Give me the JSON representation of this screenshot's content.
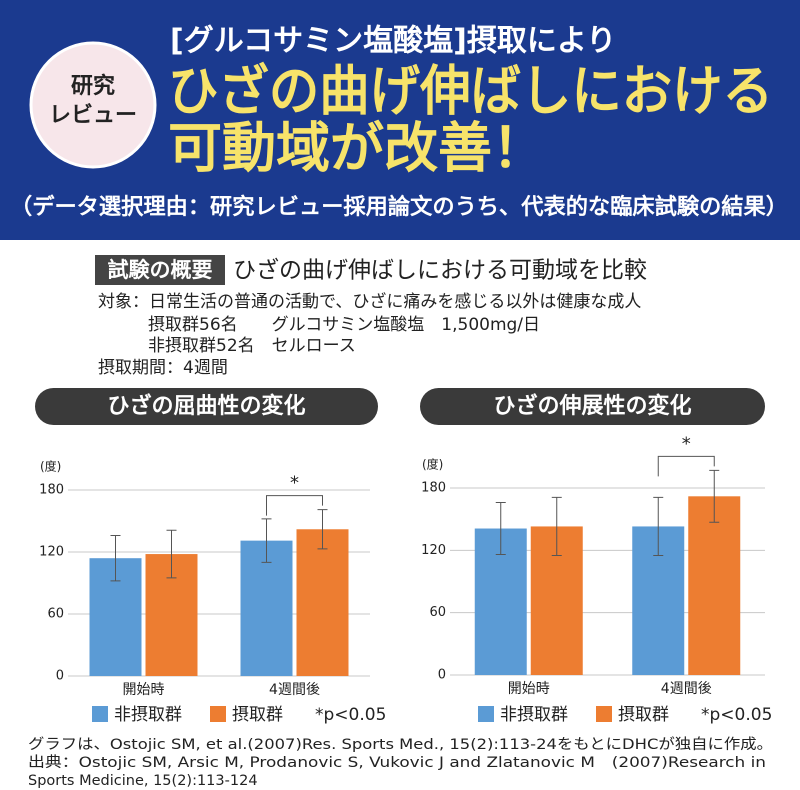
{
  "header": {
    "badge": [
      "研究",
      "レビュー"
    ],
    "title_lines": [
      "[グルコサミン塩酸塩]摂取により",
      "ひざの曲げ伸ばしにおける",
      "可動域が改善！"
    ],
    "note": "（データ選択理由：研究レビュー採用論文のうち、代表的な臨床試験の結果）"
  },
  "overview": {
    "label": "試験の概要",
    "heading": "ひざの曲げ伸ばしにおける可動域を比較",
    "lines": [
      "対象：日常生活の普通の活動で、ひざに痛みを感じる以外は健康な成人",
      "摂取群56名　　グルコサミン塩酸塩　1,500mg/日",
      "非摂取群52名　セルロース",
      "摂取期間：4週間"
    ]
  },
  "chart_data": [
    {
      "type": "bar",
      "title": "ひざの屈曲性の変化",
      "y_label": "(度)",
      "categories": [
        "開始時",
        "4週間後"
      ],
      "series": [
        {
          "name": "非摂取群",
          "color": "#5b9bd5",
          "values": [
            114,
            131
          ],
          "errors": [
            22,
            21
          ]
        },
        {
          "name": "摂取群",
          "color": "#ed7d31",
          "values": [
            118,
            142
          ],
          "errors": [
            23,
            19
          ]
        }
      ],
      "ylim": [
        0,
        180
      ],
      "yticks": [
        0,
        60,
        120,
        180
      ],
      "grid": true,
      "significance": "*",
      "note": "*p<0.05"
    },
    {
      "type": "bar",
      "title": "ひざの伸展性の変化",
      "y_label": "(度)",
      "categories": [
        "開始時",
        "4週間後"
      ],
      "series": [
        {
          "name": "非摂取群",
          "color": "#5b9bd5",
          "values": [
            141,
            143
          ],
          "errors": [
            25,
            28
          ]
        },
        {
          "name": "摂取群",
          "color": "#ed7d31",
          "values": [
            143,
            172
          ],
          "errors": [
            28,
            25
          ]
        }
      ],
      "ylim": [
        0,
        180
      ],
      "yticks": [
        0,
        60,
        120,
        180
      ],
      "grid": true,
      "significance": "*",
      "note": "*p<0.05"
    }
  ],
  "footnotes": [
    "グラフは、Ostojic SM, et al.(2007)Res. Sports Med., 15(2):113-24をもとにDHCが独自に作成。",
    "出典：Ostojic SM, Arsic M, Prodanovic S, Vukovic J and Zlatanovic M　(2007)Research in",
    "Sports Medicine, 15(2):113-124"
  ]
}
